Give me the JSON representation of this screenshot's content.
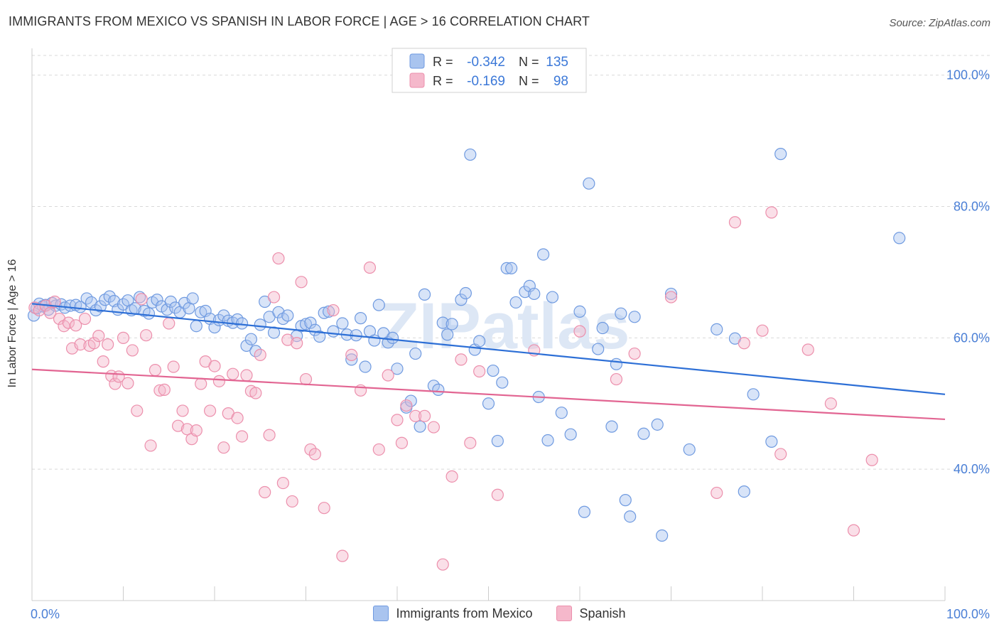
{
  "title": "IMMIGRANTS FROM MEXICO VS SPANISH IN LABOR FORCE | AGE > 16 CORRELATION CHART",
  "source": "Source: ZipAtlas.com",
  "watermark": "ZIPatlas",
  "colors": {
    "blue_fill": "#a9c4ef",
    "blue_stroke": "#6f9ae0",
    "blue_line": "#2d6fd6",
    "pink_fill": "#f5b8cb",
    "pink_stroke": "#ec8fac",
    "pink_line": "#e26592",
    "grid": "#d9d9d9",
    "tick": "#4a7fd6"
  },
  "legend": {
    "rows": [
      {
        "r_label": "R =",
        "r_value": "-0.342",
        "n_label": "N =",
        "n_value": "135",
        "series": "blue"
      },
      {
        "r_label": "R =",
        "r_value": "-0.169",
        "n_label": "N =",
        "n_value": "98",
        "series": "pink"
      }
    ]
  },
  "bottom_legend": [
    "Immigrants from Mexico",
    "Spanish"
  ],
  "chart_data": {
    "type": "scatter",
    "title": "IMMIGRANTS FROM MEXICO VS SPANISH IN LABOR FORCE | AGE > 16 CORRELATION CHART",
    "xlabel": "",
    "ylabel": "In Labor Force | Age > 16",
    "xlim": [
      0,
      100
    ],
    "ylim": [
      20,
      103
    ],
    "x_tick_labels": [
      "0.0%",
      "100.0%"
    ],
    "y_ticks": [
      40,
      60,
      80,
      100
    ],
    "y_tick_labels": [
      "40.0%",
      "60.0%",
      "80.0%",
      "100.0%"
    ],
    "grid": true,
    "legend_position": "top-center",
    "series": [
      {
        "name": "Immigrants from Mexico",
        "color": "blue",
        "trend": {
          "x": [
            0,
            100
          ],
          "y": [
            65.2,
            51.4
          ]
        },
        "points": [
          [
            0.2,
            63.4
          ],
          [
            0.5,
            64.5
          ],
          [
            0.8,
            65.2
          ],
          [
            1.2,
            64.8
          ],
          [
            1.5,
            65.0
          ],
          [
            1.8,
            64.3
          ],
          [
            2.2,
            65.3
          ],
          [
            2.6,
            64.9
          ],
          [
            3.2,
            65.1
          ],
          [
            3.6,
            64.6
          ],
          [
            4.2,
            64.9
          ],
          [
            4.8,
            65.0
          ],
          [
            5.3,
            64.7
          ],
          [
            6.0,
            66.0
          ],
          [
            6.5,
            65.4
          ],
          [
            7.0,
            64.2
          ],
          [
            7.5,
            64.8
          ],
          [
            8.0,
            65.8
          ],
          [
            8.5,
            66.3
          ],
          [
            9.0,
            65.6
          ],
          [
            9.4,
            64.3
          ],
          [
            10.0,
            65.1
          ],
          [
            10.5,
            65.7
          ],
          [
            10.9,
            64.2
          ],
          [
            11.3,
            64.5
          ],
          [
            11.8,
            66.2
          ],
          [
            12.3,
            64.1
          ],
          [
            12.8,
            63.7
          ],
          [
            13.2,
            65.4
          ],
          [
            13.7,
            65.8
          ],
          [
            14.2,
            64.8
          ],
          [
            14.8,
            64.3
          ],
          [
            15.2,
            65.5
          ],
          [
            15.7,
            64.6
          ],
          [
            16.2,
            63.9
          ],
          [
            16.7,
            65.3
          ],
          [
            17.2,
            64.5
          ],
          [
            17.6,
            66.0
          ],
          [
            18.0,
            61.8
          ],
          [
            18.5,
            63.9
          ],
          [
            19.0,
            64.1
          ],
          [
            19.5,
            62.9
          ],
          [
            20.0,
            61.6
          ],
          [
            20.5,
            62.7
          ],
          [
            21.0,
            63.4
          ],
          [
            21.5,
            62.6
          ],
          [
            22.0,
            62.3
          ],
          [
            22.5,
            62.8
          ],
          [
            23.0,
            62.2
          ],
          [
            23.5,
            58.8
          ],
          [
            24.0,
            59.8
          ],
          [
            24.5,
            58.0
          ],
          [
            25.0,
            62.0
          ],
          [
            25.5,
            65.5
          ],
          [
            26.0,
            63.2
          ],
          [
            26.5,
            60.8
          ],
          [
            27.0,
            63.9
          ],
          [
            27.5,
            62.9
          ],
          [
            28.0,
            63.4
          ],
          [
            29.0,
            60.3
          ],
          [
            29.5,
            61.8
          ],
          [
            30.0,
            62.1
          ],
          [
            30.5,
            62.3
          ],
          [
            31.0,
            61.2
          ],
          [
            31.5,
            60.2
          ],
          [
            32.0,
            63.8
          ],
          [
            32.5,
            64.0
          ],
          [
            33.0,
            61.0
          ],
          [
            34.0,
            62.2
          ],
          [
            34.5,
            60.5
          ],
          [
            35.0,
            56.7
          ],
          [
            35.5,
            60.4
          ],
          [
            36.0,
            63.0
          ],
          [
            36.5,
            55.6
          ],
          [
            37.0,
            61.0
          ],
          [
            37.5,
            59.6
          ],
          [
            38.0,
            65.0
          ],
          [
            38.5,
            60.7
          ],
          [
            39.0,
            59.3
          ],
          [
            39.5,
            60.0
          ],
          [
            40.0,
            55.3
          ],
          [
            41.0,
            49.4
          ],
          [
            41.5,
            50.4
          ],
          [
            42.0,
            57.6
          ],
          [
            42.5,
            46.5
          ],
          [
            43.0,
            66.6
          ],
          [
            44.0,
            52.7
          ],
          [
            44.5,
            52.1
          ],
          [
            45.0,
            62.3
          ],
          [
            45.5,
            60.5
          ],
          [
            46.0,
            62.1
          ],
          [
            47.0,
            65.8
          ],
          [
            47.5,
            66.8
          ],
          [
            48.0,
            87.9
          ],
          [
            48.5,
            58.2
          ],
          [
            49.0,
            59.5
          ],
          [
            50.0,
            50.0
          ],
          [
            50.5,
            55.0
          ],
          [
            51.0,
            44.3
          ],
          [
            51.5,
            53.2
          ],
          [
            52.0,
            70.6
          ],
          [
            52.5,
            70.6
          ],
          [
            53.0,
            65.4
          ],
          [
            54.0,
            67.0
          ],
          [
            54.5,
            67.9
          ],
          [
            55.0,
            66.7
          ],
          [
            55.5,
            51.0
          ],
          [
            56.0,
            72.7
          ],
          [
            56.5,
            44.4
          ],
          [
            57.0,
            66.2
          ],
          [
            58.0,
            48.6
          ],
          [
            59.0,
            45.3
          ],
          [
            60.0,
            64.0
          ],
          [
            60.5,
            33.5
          ],
          [
            61.0,
            83.5
          ],
          [
            62.0,
            58.3
          ],
          [
            62.5,
            61.5
          ],
          [
            63.5,
            46.5
          ],
          [
            64.0,
            56.0
          ],
          [
            64.5,
            63.7
          ],
          [
            65.0,
            35.3
          ],
          [
            65.5,
            32.8
          ],
          [
            66.0,
            63.2
          ],
          [
            67.0,
            45.4
          ],
          [
            68.5,
            46.8
          ],
          [
            69.0,
            29.9
          ],
          [
            70.0,
            66.7
          ],
          [
            72.0,
            43.0
          ],
          [
            75.0,
            61.3
          ],
          [
            77.0,
            59.9
          ],
          [
            78.0,
            36.6
          ],
          [
            79.0,
            51.4
          ],
          [
            81.0,
            44.2
          ],
          [
            82.0,
            88.0
          ],
          [
            95.0,
            75.2
          ]
        ]
      },
      {
        "name": "Spanish",
        "color": "pink",
        "trend": {
          "x": [
            0,
            100
          ],
          "y": [
            55.2,
            47.6
          ]
        },
        "points": [
          [
            0.3,
            64.6
          ],
          [
            0.8,
            64.2
          ],
          [
            1.5,
            64.9
          ],
          [
            2.0,
            63.8
          ],
          [
            2.5,
            65.5
          ],
          [
            3.0,
            62.9
          ],
          [
            3.5,
            61.8
          ],
          [
            4.0,
            62.3
          ],
          [
            4.4,
            58.4
          ],
          [
            4.8,
            61.9
          ],
          [
            5.3,
            59.0
          ],
          [
            5.8,
            62.9
          ],
          [
            6.3,
            58.8
          ],
          [
            6.8,
            59.2
          ],
          [
            7.3,
            60.3
          ],
          [
            7.8,
            56.4
          ],
          [
            8.3,
            59.0
          ],
          [
            8.7,
            54.2
          ],
          [
            9.1,
            53.0
          ],
          [
            9.5,
            54.1
          ],
          [
            10.0,
            60.0
          ],
          [
            10.5,
            53.1
          ],
          [
            11.0,
            58.1
          ],
          [
            11.5,
            48.9
          ],
          [
            12.0,
            65.9
          ],
          [
            12.5,
            60.4
          ],
          [
            13.0,
            43.6
          ],
          [
            13.5,
            55.1
          ],
          [
            14.0,
            52.0
          ],
          [
            14.5,
            52.1
          ],
          [
            15.0,
            62.2
          ],
          [
            15.5,
            55.6
          ],
          [
            16.0,
            46.6
          ],
          [
            16.5,
            48.9
          ],
          [
            17.0,
            46.1
          ],
          [
            17.5,
            44.6
          ],
          [
            18.0,
            45.9
          ],
          [
            18.5,
            53.0
          ],
          [
            19.0,
            56.4
          ],
          [
            19.5,
            48.9
          ],
          [
            20.0,
            55.7
          ],
          [
            20.5,
            53.4
          ],
          [
            21.0,
            43.3
          ],
          [
            21.5,
            48.5
          ],
          [
            22.0,
            54.5
          ],
          [
            22.5,
            47.8
          ],
          [
            23.0,
            45.0
          ],
          [
            23.5,
            54.3
          ],
          [
            24.0,
            51.9
          ],
          [
            24.5,
            51.6
          ],
          [
            25.0,
            57.4
          ],
          [
            25.5,
            36.5
          ],
          [
            26.0,
            45.2
          ],
          [
            26.5,
            66.2
          ],
          [
            27.0,
            72.1
          ],
          [
            27.5,
            37.9
          ],
          [
            28.0,
            59.7
          ],
          [
            28.5,
            35.1
          ],
          [
            29.0,
            59.2
          ],
          [
            29.5,
            68.5
          ],
          [
            30.0,
            53.7
          ],
          [
            30.5,
            43.0
          ],
          [
            31.0,
            42.3
          ],
          [
            32.0,
            34.1
          ],
          [
            33.0,
            64.2
          ],
          [
            34.0,
            26.8
          ],
          [
            35.0,
            57.4
          ],
          [
            36.0,
            52.0
          ],
          [
            37.0,
            70.7
          ],
          [
            38.0,
            43.0
          ],
          [
            39.0,
            54.3
          ],
          [
            40.0,
            47.5
          ],
          [
            40.5,
            44.0
          ],
          [
            41.0,
            49.7
          ],
          [
            42.0,
            48.1
          ],
          [
            43.0,
            48.1
          ],
          [
            44.0,
            46.4
          ],
          [
            45.0,
            25.5
          ],
          [
            46.0,
            38.9
          ],
          [
            47.0,
            56.7
          ],
          [
            48.0,
            44.0
          ],
          [
            49.0,
            54.9
          ],
          [
            51.0,
            36.1
          ],
          [
            55.0,
            58.1
          ],
          [
            60.0,
            61.0
          ],
          [
            64.0,
            53.7
          ],
          [
            66.0,
            57.6
          ],
          [
            70.0,
            66.2
          ],
          [
            75.0,
            36.4
          ],
          [
            77.0,
            77.6
          ],
          [
            78.0,
            59.2
          ],
          [
            80.0,
            61.1
          ],
          [
            81.0,
            79.1
          ],
          [
            82.0,
            42.3
          ],
          [
            85.0,
            58.2
          ],
          [
            87.5,
            50.0
          ],
          [
            90.0,
            30.7
          ],
          [
            92.0,
            41.4
          ]
        ]
      }
    ]
  }
}
